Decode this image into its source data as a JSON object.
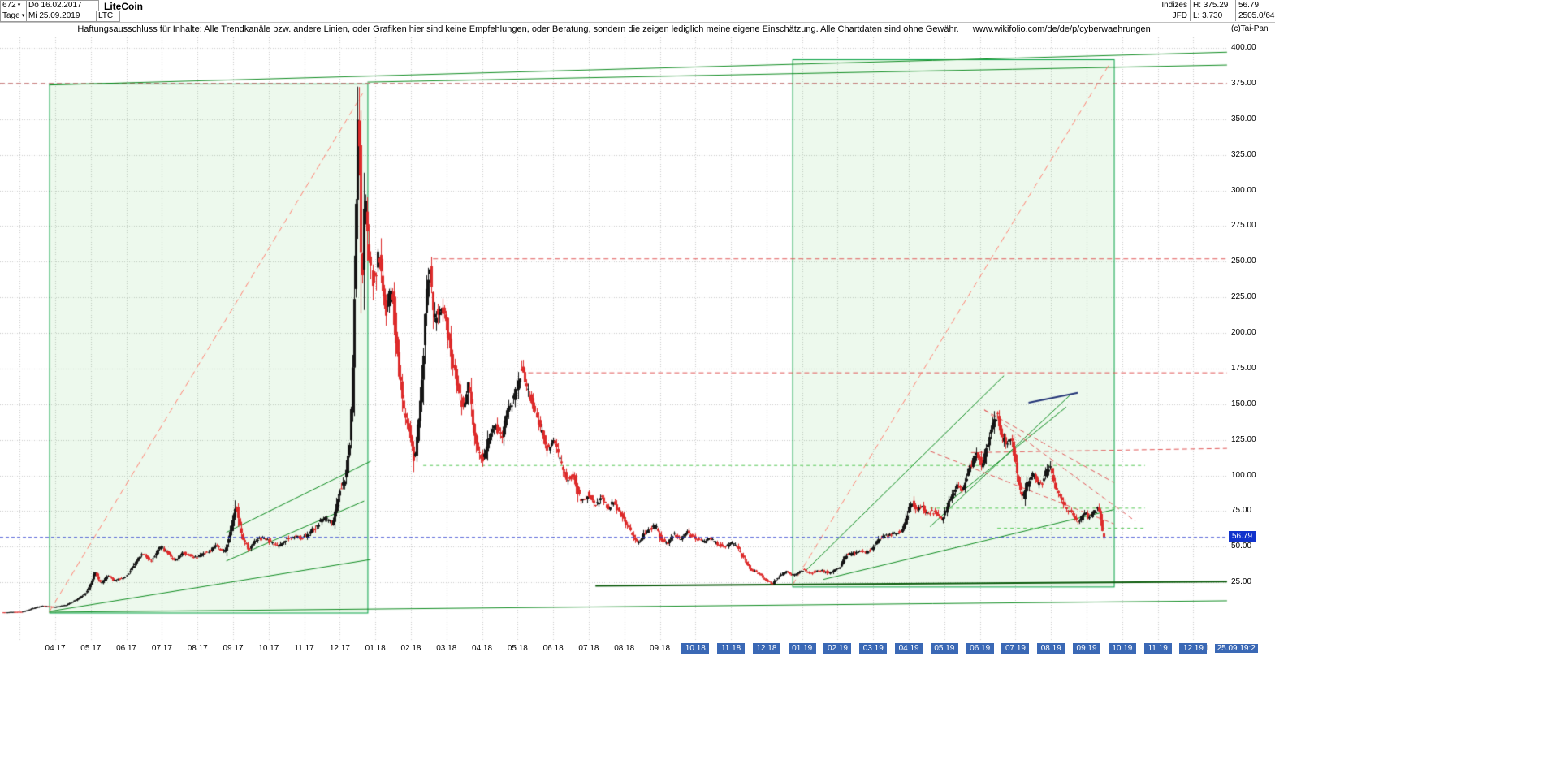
{
  "header": {
    "bars_count": "672",
    "arrow": "▾",
    "date_from": "Do 16.02.2017",
    "period": "Tage",
    "date_to": "Mi 25.09.2019",
    "symbol": "LTC",
    "title": "LiteCoin",
    "stats": {
      "group": "Indizes",
      "provider": "JFD",
      "high": "H: 375.29",
      "low": "L: 3.730",
      "last": "56.79",
      "extra": "2505.0/64"
    }
  },
  "disclaimer": {
    "text": "Haftungsausschluss für Inhalte: Alle Trendkanäle bzw. andere Linien, oder Grafiken hier sind keine Empfehlungen, oder Beratung, sondern die zeigen lediglich meine eigene Einschätzung. Alle Chartdaten sind ohne Gewähr.",
    "url": "www.wikifolio.com/de/de/p/cyberwaehrungen"
  },
  "copyright": "(c)Tai-Pan",
  "price_tag": {
    "label": "56.79"
  },
  "bottom_right": {
    "marker": "L",
    "timestamp": "25.09 19:2"
  },
  "colors": {
    "up": "#151515",
    "down": "#dd2b2b",
    "grid": "#c9c9c9",
    "box_fill": "rgba(80,200,80,0.10)",
    "box_stroke": "#00a040",
    "price_line": "#2233cc",
    "tag_bg": "#1133cc",
    "xlabel_hl_bg": "#3a68b5"
  },
  "chart_data": {
    "type": "candlestick",
    "instrument": "LiteCoin (LTC)",
    "timeframe": "Tage",
    "range": {
      "from": "16.02.2017",
      "to": "25.09.2019"
    },
    "bars_total": 672,
    "last_price": 56.79,
    "high": 375.29,
    "low": 3.73,
    "ylim": [
      0,
      405
    ],
    "grid": true,
    "y_ticks": [
      {
        "v": 400,
        "label": "400.00"
      },
      {
        "v": 375,
        "label": "375.00"
      },
      {
        "v": 350,
        "label": "350.00"
      },
      {
        "v": 325,
        "label": "325.00"
      },
      {
        "v": 300,
        "label": "300.00"
      },
      {
        "v": 275,
        "label": "275.00"
      },
      {
        "v": 250,
        "label": "250.00"
      },
      {
        "v": 225,
        "label": "225.00"
      },
      {
        "v": 200,
        "label": "200.00"
      },
      {
        "v": 175,
        "label": "175.00"
      },
      {
        "v": 150,
        "label": "150.00"
      },
      {
        "v": 125,
        "label": "125.00"
      },
      {
        "v": 100,
        "label": "100.00"
      },
      {
        "v": 75,
        "label": "75.00"
      },
      {
        "v": 50,
        "label": "50.00"
      },
      {
        "v": 25,
        "label": "25.00"
      }
    ],
    "x_labels": [
      {
        "label": "04 17",
        "hl": false
      },
      {
        "label": "05 17",
        "hl": false
      },
      {
        "label": "06 17",
        "hl": false
      },
      {
        "label": "07 17",
        "hl": false
      },
      {
        "label": "08 17",
        "hl": false
      },
      {
        "label": "09 17",
        "hl": false
      },
      {
        "label": "10 17",
        "hl": false
      },
      {
        "label": "11 17",
        "hl": false
      },
      {
        "label": "12 17",
        "hl": false
      },
      {
        "label": "01 18",
        "hl": false
      },
      {
        "label": "02 18",
        "hl": false
      },
      {
        "label": "03 18",
        "hl": false
      },
      {
        "label": "04 18",
        "hl": false
      },
      {
        "label": "05 18",
        "hl": false
      },
      {
        "label": "06 18",
        "hl": false
      },
      {
        "label": "07 18",
        "hl": false
      },
      {
        "label": "08 18",
        "hl": false
      },
      {
        "label": "09 18",
        "hl": false
      },
      {
        "label": "10 18",
        "hl": true
      },
      {
        "label": "11 18",
        "hl": true
      },
      {
        "label": "12 18",
        "hl": true
      },
      {
        "label": "01 19",
        "hl": true
      },
      {
        "label": "02 19",
        "hl": true
      },
      {
        "label": "03 19",
        "hl": true
      },
      {
        "label": "04 19",
        "hl": true
      },
      {
        "label": "05 19",
        "hl": true
      },
      {
        "label": "06 19",
        "hl": true
      },
      {
        "label": "07 19",
        "hl": true
      },
      {
        "label": "08 19",
        "hl": true
      },
      {
        "label": "09 19",
        "hl": true
      },
      {
        "label": "10 19",
        "hl": true
      },
      {
        "label": "11 19",
        "hl": true
      },
      {
        "label": "12 19",
        "hl": true
      }
    ],
    "price_anchors": [
      [
        0,
        3.8
      ],
      [
        6,
        4.1
      ],
      [
        12,
        4.3
      ],
      [
        18,
        6.5
      ],
      [
        24,
        8.5
      ],
      [
        31,
        7.5
      ],
      [
        38,
        9
      ],
      [
        45,
        13
      ],
      [
        50,
        17
      ],
      [
        53,
        22
      ],
      [
        56,
        33
      ],
      [
        60,
        24
      ],
      [
        64,
        30
      ],
      [
        68,
        26
      ],
      [
        75,
        29
      ],
      [
        80,
        38
      ],
      [
        85,
        46
      ],
      [
        90,
        40
      ],
      [
        96,
        50
      ],
      [
        100,
        46
      ],
      [
        105,
        40
      ],
      [
        110,
        46
      ],
      [
        118,
        42
      ],
      [
        124,
        46
      ],
      [
        130,
        51
      ],
      [
        135,
        46
      ],
      [
        140,
        68
      ],
      [
        142,
        80
      ],
      [
        146,
        56
      ],
      [
        150,
        48
      ],
      [
        155,
        56
      ],
      [
        161,
        55
      ],
      [
        168,
        50
      ],
      [
        175,
        57
      ],
      [
        183,
        56
      ],
      [
        190,
        63
      ],
      [
        196,
        71
      ],
      [
        201,
        66
      ],
      [
        205,
        88
      ],
      [
        209,
        98
      ],
      [
        212,
        130
      ],
      [
        214,
        200
      ],
      [
        216,
        330
      ],
      [
        217,
        373
      ],
      [
        219,
        225
      ],
      [
        221,
        305
      ],
      [
        223,
        255
      ],
      [
        226,
        235
      ],
      [
        229,
        256
      ],
      [
        233,
        213
      ],
      [
        237,
        232
      ],
      [
        241,
        178
      ],
      [
        245,
        142
      ],
      [
        248,
        132
      ],
      [
        251,
        108
      ],
      [
        255,
        158
      ],
      [
        258,
        222
      ],
      [
        260,
        250
      ],
      [
        263,
        208
      ],
      [
        266,
        218
      ],
      [
        270,
        210
      ],
      [
        274,
        182
      ],
      [
        278,
        158
      ],
      [
        281,
        145
      ],
      [
        284,
        167
      ],
      [
        287,
        132
      ],
      [
        290,
        116
      ],
      [
        293,
        111
      ],
      [
        296,
        126
      ],
      [
        300,
        136
      ],
      [
        304,
        126
      ],
      [
        308,
        150
      ],
      [
        311,
        152
      ],
      [
        314,
        166
      ],
      [
        317,
        176
      ],
      [
        320,
        160
      ],
      [
        324,
        146
      ],
      [
        328,
        131
      ],
      [
        331,
        120
      ],
      [
        333,
        118
      ],
      [
        336,
        123
      ],
      [
        340,
        110
      ],
      [
        344,
        96
      ],
      [
        348,
        101
      ],
      [
        351,
        86
      ],
      [
        354,
        81
      ],
      [
        357,
        88
      ],
      [
        361,
        79
      ],
      [
        365,
        85
      ],
      [
        369,
        77
      ],
      [
        372,
        81
      ],
      [
        376,
        74
      ],
      [
        380,
        65
      ],
      [
        384,
        58
      ],
      [
        387,
        52
      ],
      [
        391,
        59
      ],
      [
        395,
        63
      ],
      [
        398,
        65
      ],
      [
        401,
        56
      ],
      [
        405,
        52
      ],
      [
        409,
        59
      ],
      [
        413,
        55
      ],
      [
        417,
        61
      ],
      [
        419,
        58
      ],
      [
        423,
        55
      ],
      [
        427,
        53
      ],
      [
        431,
        56
      ],
      [
        435,
        52
      ],
      [
        439,
        50
      ],
      [
        441,
        50
      ],
      [
        445,
        53
      ],
      [
        449,
        47
      ],
      [
        452,
        41
      ],
      [
        456,
        34
      ],
      [
        460,
        32
      ],
      [
        462,
        30
      ],
      [
        466,
        26
      ],
      [
        469,
        23.5
      ],
      [
        473,
        29
      ],
      [
        477,
        33
      ],
      [
        481,
        30
      ],
      [
        484,
        31
      ],
      [
        488,
        34
      ],
      [
        492,
        31
      ],
      [
        496,
        33
      ],
      [
        500,
        33
      ],
      [
        504,
        31
      ],
      [
        506,
        33
      ],
      [
        510,
        35
      ],
      [
        514,
        44
      ],
      [
        518,
        45
      ],
      [
        522,
        47
      ],
      [
        526,
        46
      ],
      [
        530,
        49
      ],
      [
        534,
        56
      ],
      [
        538,
        57
      ],
      [
        542,
        59
      ],
      [
        546,
        60
      ],
      [
        548,
        62
      ],
      [
        551,
        71
      ],
      [
        554,
        82
      ],
      [
        557,
        76
      ],
      [
        560,
        79
      ],
      [
        563,
        72
      ],
      [
        566,
        75
      ],
      [
        569,
        74
      ],
      [
        572,
        68
      ],
      [
        575,
        76
      ],
      [
        578,
        86
      ],
      [
        581,
        93
      ],
      [
        584,
        89
      ],
      [
        587,
        96
      ],
      [
        589,
        106
      ],
      [
        591,
        109
      ],
      [
        594,
        116
      ],
      [
        597,
        106
      ],
      [
        600,
        121
      ],
      [
        603,
        133
      ],
      [
        606,
        143
      ],
      [
        609,
        127
      ],
      [
        612,
        122
      ],
      [
        615,
        126
      ],
      [
        617,
        111
      ],
      [
        620,
        91
      ],
      [
        622,
        83
      ],
      [
        625,
        96
      ],
      [
        628,
        101
      ],
      [
        631,
        93
      ],
      [
        634,
        96
      ],
      [
        636,
        103
      ],
      [
        638,
        107
      ],
      [
        641,
        93
      ],
      [
        644,
        86
      ],
      [
        647,
        79
      ],
      [
        650,
        75
      ],
      [
        653,
        71
      ],
      [
        656,
        67
      ],
      [
        658,
        71
      ],
      [
        660,
        73
      ],
      [
        662,
        70
      ],
      [
        664,
        72
      ],
      [
        666,
        75
      ],
      [
        668,
        77
      ],
      [
        669,
        72
      ],
      [
        670,
        63
      ],
      [
        671,
        56.79
      ]
    ],
    "overlays": {
      "boxes": [
        {
          "i1": 28,
          "p1": 3.7,
          "i2": 222,
          "p2": 375
        },
        {
          "i1": 481,
          "p1": 22,
          "i2": 677,
          "p2": 392
        }
      ],
      "lines": [
        {
          "i1": -2,
          "p1": 375,
          "i2": 746,
          "p2": 375,
          "c": "#b04545",
          "d": [
            6,
            4
          ],
          "w": 1
        },
        {
          "i1": 262,
          "p1": 252,
          "i2": 746,
          "p2": 252,
          "c": "#e05555",
          "d": [
            6,
            4
          ],
          "w": 1
        },
        {
          "i1": 320,
          "p1": 172,
          "i2": 746,
          "p2": 172,
          "c": "#e05555",
          "d": [
            6,
            4
          ],
          "w": 1
        },
        {
          "i1": 28,
          "p1": 374,
          "i2": 746,
          "p2": 397,
          "c": "#0c8a1e",
          "d": 0,
          "w": 1
        },
        {
          "i1": 222,
          "p1": 376,
          "i2": 746,
          "p2": 388,
          "c": "#0c8a1e",
          "d": 0,
          "w": 1
        },
        {
          "i1": 28,
          "p1": 4.5,
          "i2": 224,
          "p2": 41,
          "c": "#0c8a1e",
          "d": 0,
          "w": 1
        },
        {
          "i1": 136,
          "p1": 60,
          "i2": 224,
          "p2": 110,
          "c": "#0c8a1e",
          "d": 0,
          "w": 1
        },
        {
          "i1": 136,
          "p1": 40,
          "i2": 220,
          "p2": 82,
          "c": "#0c8a1e",
          "d": 0,
          "w": 1
        },
        {
          "i1": 28,
          "p1": 4,
          "i2": 746,
          "p2": 12,
          "c": "#0c8a1e",
          "d": 0,
          "w": 1
        },
        {
          "i1": 361,
          "p1": 22.5,
          "i2": 746,
          "p2": 25.5,
          "c": "#0a5a0a",
          "d": 0,
          "w": 2
        },
        {
          "i1": 28,
          "p1": 4.2,
          "i2": 219,
          "p2": 368,
          "c": "#ff8070",
          "d": [
            8,
            5
          ],
          "w": 1
        },
        {
          "i1": 481,
          "p1": 23,
          "i2": 675,
          "p2": 390,
          "c": "#ff8070",
          "d": [
            8,
            5
          ],
          "w": 1
        },
        {
          "i1": 489,
          "p1": 33,
          "i2": 610,
          "p2": 170,
          "c": "#0c8a1e",
          "d": 0,
          "w": 1
        },
        {
          "i1": 500,
          "p1": 27,
          "i2": 677,
          "p2": 76,
          "c": "#0c8a1e",
          "d": 0,
          "w": 1
        },
        {
          "i1": 565,
          "p1": 64,
          "i2": 650,
          "p2": 156,
          "c": "#0c8a1e",
          "d": 0,
          "w": 1
        },
        {
          "i1": 575,
          "p1": 80,
          "i2": 648,
          "p2": 148,
          "c": "#0c8a1e",
          "d": 0,
          "w": 1
        },
        {
          "i1": 598,
          "p1": 146,
          "i2": 690,
          "p2": 68,
          "c": "#e05555",
          "d": [
            6,
            4
          ],
          "w": 1
        },
        {
          "i1": 598,
          "p1": 146,
          "i2": 677,
          "p2": 95,
          "c": "#e05555",
          "d": [
            6,
            4
          ],
          "w": 1
        },
        {
          "i1": 565,
          "p1": 117,
          "i2": 677,
          "p2": 66,
          "c": "#e05555",
          "d": [
            6,
            4
          ],
          "w": 1
        },
        {
          "i1": 590,
          "p1": 116,
          "i2": 746,
          "p2": 119,
          "c": "#e05555",
          "d": [
            6,
            4
          ],
          "w": 1
        },
        {
          "i1": 256,
          "p1": 107,
          "i2": 696,
          "p2": 107,
          "c": "#57c857",
          "d": [
            4,
            4
          ],
          "w": 1
        },
        {
          "i1": 565,
          "p1": 77,
          "i2": 696,
          "p2": 77,
          "c": "#57c857",
          "d": [
            4,
            4
          ],
          "w": 1
        },
        {
          "i1": 606,
          "p1": 63,
          "i2": 696,
          "p2": 63,
          "c": "#57c857",
          "d": [
            4,
            4
          ],
          "w": 1
        },
        {
          "i1": 625,
          "p1": 151,
          "i2": 655,
          "p2": 158,
          "c": "#223377",
          "d": 0,
          "w": 2
        }
      ]
    },
    "current_price_line": {
      "price": 56.79
    }
  }
}
